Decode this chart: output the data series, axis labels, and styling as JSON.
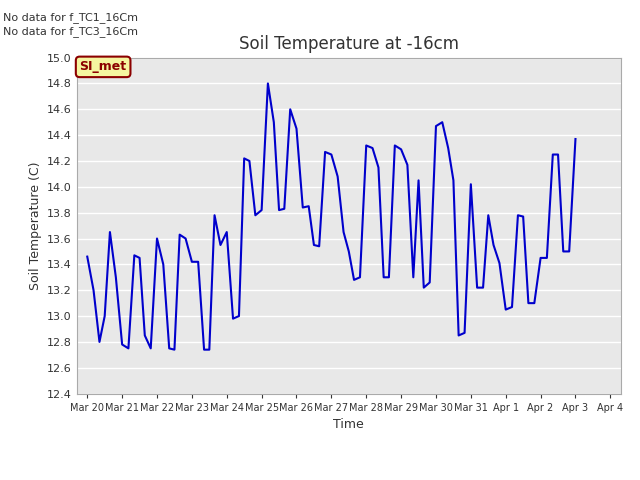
{
  "title": "Soil Temperature at -16cm",
  "xlabel": "Time",
  "ylabel": "Soil Temperature (C)",
  "ylim": [
    12.4,
    15.0
  ],
  "line_color": "#0000cc",
  "line_width": 1.5,
  "fig_bg_color": "#ffffff",
  "plot_bg_color": "#e8e8e8",
  "annotations": [
    "No data for f_TC1_16Cm",
    "No data for f_TC3_16Cm"
  ],
  "legend_box_label": "SI_met",
  "x_tick_labels": [
    "Mar 20",
    "Mar 21",
    "Mar 22",
    "Mar 23",
    "Mar 24",
    "Mar 25",
    "Mar 26",
    "Mar 27",
    "Mar 28",
    "Mar 29",
    "Mar 30",
    "Mar 31",
    "Apr 1",
    "Apr 2",
    "Apr 3",
    "Apr 4"
  ],
  "y_ticks": [
    12.4,
    12.6,
    12.8,
    13.0,
    13.2,
    13.4,
    13.6,
    13.8,
    14.0,
    14.2,
    14.4,
    14.6,
    14.8,
    15.0
  ],
  "y_data": [
    13.46,
    13.2,
    12.8,
    13.0,
    13.65,
    13.3,
    12.78,
    12.75,
    13.47,
    13.45,
    12.85,
    12.75,
    13.6,
    13.4,
    12.75,
    12.74,
    13.63,
    13.6,
    13.42,
    13.42,
    12.74,
    12.74,
    13.78,
    13.55,
    13.65,
    12.98,
    13.0,
    14.22,
    14.2,
    13.78,
    13.82,
    14.8,
    14.5,
    13.82,
    13.83,
    14.6,
    14.45,
    13.84,
    13.85,
    13.55,
    13.54,
    14.27,
    14.25,
    14.08,
    13.65,
    13.5,
    13.28,
    13.3,
    14.32,
    14.3,
    14.15,
    13.3,
    13.3,
    14.32,
    14.29,
    14.17,
    13.3,
    14.05,
    13.22,
    13.26,
    14.47,
    14.5,
    14.3,
    14.05,
    12.85,
    12.87,
    14.02,
    13.22,
    13.22,
    13.78,
    13.55,
    13.41,
    13.05,
    13.07,
    13.78,
    13.77,
    13.1,
    13.1,
    13.45,
    13.45,
    14.25,
    14.25,
    13.5,
    13.5,
    14.37
  ],
  "x_data_dense": [
    0.0,
    0.18,
    0.35,
    0.5,
    0.65,
    0.82,
    1.0,
    1.18,
    1.35,
    1.5,
    1.65,
    1.82,
    2.0,
    2.18,
    2.35,
    2.5,
    2.65,
    2.82,
    3.0,
    3.18,
    3.35,
    3.5,
    3.65,
    3.82,
    4.0,
    4.18,
    4.35,
    4.5,
    4.65,
    4.82,
    5.0,
    5.18,
    5.35,
    5.5,
    5.65,
    5.82,
    6.0,
    6.18,
    6.35,
    6.5,
    6.65,
    6.82,
    7.0,
    7.18,
    7.35,
    7.5,
    7.65,
    7.82,
    8.0,
    8.18,
    8.35,
    8.5,
    8.65,
    8.82,
    9.0,
    9.18,
    9.35,
    9.5,
    9.65,
    9.82,
    10.0,
    10.18,
    10.35,
    10.5,
    10.65,
    10.82,
    11.0,
    11.18,
    11.35,
    11.5,
    11.65,
    11.82,
    12.0,
    12.18,
    12.35,
    12.5,
    12.65,
    12.82,
    13.0,
    13.18,
    13.35,
    13.5,
    13.65,
    13.82,
    14.0
  ]
}
